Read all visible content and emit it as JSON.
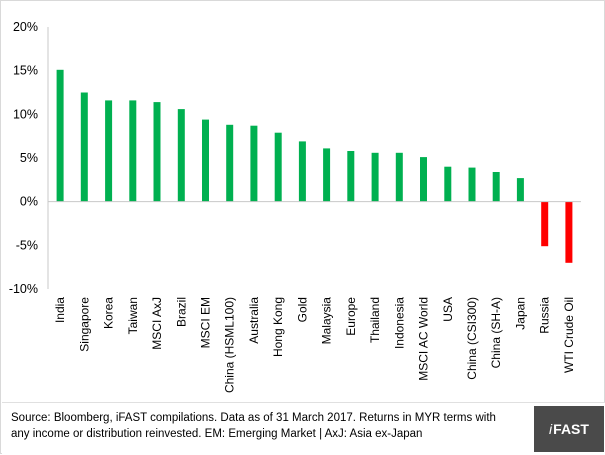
{
  "chart_data": {
    "type": "bar",
    "categories": [
      "India",
      "Singapore",
      "Korea",
      "Taiwan",
      "MSCI AxJ",
      "Brazil",
      "MSCI EM",
      "China (HSML100)",
      "Australia",
      "Hong Kong",
      "Gold",
      "Malaysia",
      "Europe",
      "Thailand",
      "Indonesia",
      "MSCI AC World",
      "USA",
      "China (CSI300)",
      "China (SH-A)",
      "Japan",
      "Russia",
      "WTI Crude Oil"
    ],
    "values": [
      15.1,
      12.5,
      11.6,
      11.6,
      11.4,
      10.6,
      9.4,
      8.8,
      8.7,
      7.9,
      6.9,
      6.1,
      5.8,
      5.6,
      5.6,
      5.1,
      4.0,
      3.9,
      3.4,
      2.7,
      -5.1,
      -7.0
    ],
    "ylim": [
      -10,
      20
    ],
    "yticks": [
      "20%",
      "15%",
      "10%",
      "5%",
      "0%",
      "-5%",
      "-10%"
    ],
    "ytick_values": [
      20,
      15,
      10,
      5,
      0,
      -5,
      -10
    ],
    "colors": {
      "positive": "#00b050",
      "negative": "#ff0000"
    },
    "grid": false,
    "legend": "none"
  },
  "footer": {
    "source_line1": "Source:  Bloomberg,  iFAST compilations. Data as of 31 March 2017. Returns  in MYR terms with",
    "source_line2": "any income or distribution reinvested. EM: Emerging Market  |  AxJ:  Asia ex-Japan",
    "logo_i": "i",
    "logo_text": "FAST"
  }
}
